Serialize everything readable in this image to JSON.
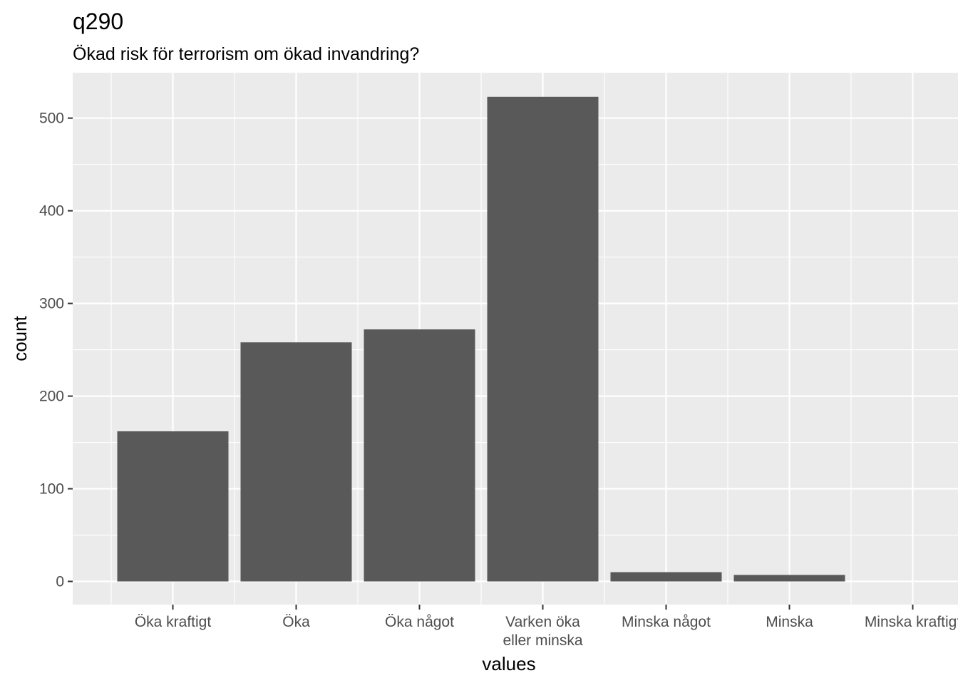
{
  "chart_data": {
    "type": "bar",
    "title": "q290",
    "subtitle": "Ökad risk för terrorism om ökad invandring?",
    "xlabel": "values",
    "ylabel": "count",
    "categories": [
      "Öka kraftigt",
      "Öka",
      "Öka något",
      "Varken öka\neller minska",
      "Minska något",
      "Minska",
      "Minska kraftigt"
    ],
    "values": [
      162,
      258,
      272,
      523,
      10,
      7,
      0
    ],
    "yticks": [
      0,
      100,
      200,
      300,
      400,
      500
    ],
    "ylim": [
      -25,
      549
    ],
    "grid": true,
    "colors": {
      "bar": "#595959",
      "panel": "#ebebeb",
      "grid_major": "#ffffff",
      "tick_text": "#4d4d4d",
      "tick_mark": "#333333"
    }
  }
}
